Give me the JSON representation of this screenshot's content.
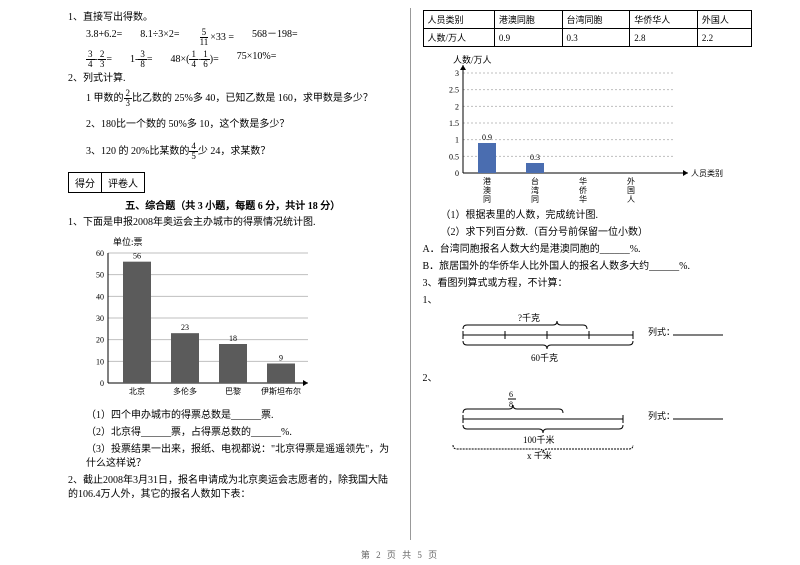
{
  "left": {
    "q1_title": "1、直接写出得数。",
    "expr_row1": [
      "3.8+6.2=",
      "8.1÷3×2="
    ],
    "expr_frac1": {
      "n": "5",
      "d": "11",
      "after": "×33 ="
    },
    "expr_r1_last": "568－198=",
    "expr_frac2a": {
      "n": "3",
      "d": "4"
    },
    "expr_frac2b": {
      "n": "2",
      "d": "3"
    },
    "expr_frac3": {
      "n": "3",
      "d": "8"
    },
    "expr_frac4a": {
      "n": "1",
      "d": "4"
    },
    "expr_frac4b": {
      "n": "1",
      "d": "6"
    },
    "expr_r2_last": "75×10%=",
    "q2_title": "2、列式计算.",
    "q2_1a": "1 甲数的",
    "q2_1_frac": {
      "n": "2",
      "d": "3"
    },
    "q2_1b": "比乙数的 25%多 40，已知乙数是 160，求甲数是多少？",
    "q2_2": "2、180比一个数的 50%多 10，这个数是多少？",
    "q2_3a": "3、120 的 20%比某数的",
    "q2_3_frac": {
      "n": "4",
      "d": "5"
    },
    "q2_3b": "少 24，求某数？",
    "score_labels": [
      "得分",
      "评卷人"
    ],
    "section5": "五、综合题（共 3 小题，每题 6 分，共计 18 分）",
    "q5_1": "1、下面是申报2008年奥运会主办城市的得票情况统计图.",
    "chart1": {
      "unit": "单位:票",
      "ymax": 60,
      "ystep": 10,
      "bars": [
        {
          "label": "北京",
          "value": 56,
          "color": "#5b5b5b"
        },
        {
          "label": "多伦多",
          "value": 23,
          "color": "#5b5b5b"
        },
        {
          "label": "巴黎",
          "value": 18,
          "color": "#5b5b5b"
        },
        {
          "label": "伊斯坦布尔",
          "value": 9,
          "color": "#5b5b5b"
        }
      ],
      "grid": "#bfbfbf",
      "axis": "#000"
    },
    "q5_1_1": "（1）四个申办城市的得票总数是______票.",
    "q5_1_2": "（2）北京得______票，占得票总数的______%.",
    "q5_1_3": "（3）投票结果一出来，报纸、电视都说：\"北京得票是遥遥领先\"，为什么这样说？",
    "q5_2": "2、截止2008年3月31日，报名申请成为北京奥运会志愿者的，除我国大陆的106.4万人外，其它的报名人数如下表："
  },
  "right": {
    "table": {
      "headers": [
        "人员类别",
        "港澳同胞",
        "台湾同胞",
        "华侨华人",
        "外国人"
      ],
      "row_label": "人数/万人",
      "values": [
        "0.9",
        "0.3",
        "2.8",
        "2.2"
      ]
    },
    "chart2": {
      "ylabel": "人数/万人",
      "xlabel": "人员类别",
      "ymax": 3,
      "ystep": 0.5,
      "bars": [
        {
          "label": "港澳同胞",
          "value": 0.9,
          "shown": "0.9",
          "color": "#4a6db0"
        },
        {
          "label": "台湾同胞",
          "value": 0.3,
          "shown": "0.3",
          "color": "#4a6db0"
        },
        {
          "label": "华侨华人",
          "value": 0,
          "color": "#4a6db0"
        },
        {
          "label": "外国人",
          "value": 0,
          "color": "#4a6db0"
        }
      ],
      "grid": "#bfbfbf",
      "axis": "#000"
    },
    "r_q1": "（1）根据表里的人数，完成统计图.",
    "r_q2": "（2）求下列百分数.（百分号前保留一位小数）",
    "r_qA": "A．台湾同胞报名人数大约是港澳同胞的______%.",
    "r_qB": "B．旅居国外的华侨华人比外国人的报名人数多大约______%.",
    "q3_title": "3、看图列算式或方程，不计算：",
    "d1": {
      "top": "?千克",
      "bottom": "60千克",
      "rlabel": "列式："
    },
    "d2": {
      "topfrac": {
        "n": "6",
        "d": "8"
      },
      "mid": "100千米",
      "bottom": "x 千米",
      "rlabel": "列式："
    }
  },
  "footer": "第 2 页 共 5 页"
}
